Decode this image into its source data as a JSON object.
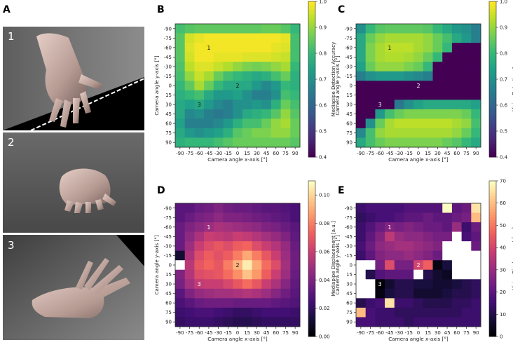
{
  "figure": {
    "panel_letters": [
      "A",
      "B",
      "C",
      "D",
      "E"
    ],
    "photo_labels": [
      "1",
      "2",
      "3"
    ]
  },
  "chart_data": [
    {
      "id": "B",
      "type": "heatmap",
      "xlabel": "Camera angle x-axis [°]",
      "ylabel": "Camera angle y-axis [°]",
      "x_ticks": [
        "-90",
        "-75",
        "-60",
        "-45",
        "-30",
        "-15",
        "0",
        "15",
        "30",
        "45",
        "60",
        "75",
        "90"
      ],
      "y_ticks": [
        "-90",
        "-75",
        "-60",
        "-45",
        "-30",
        "-15",
        "0",
        "15",
        "30",
        "45",
        "60",
        "75",
        "90"
      ],
      "colorbar": {
        "label": "Mediapipe Detection Accuracy",
        "range": [
          0.4,
          1.0
        ],
        "ticks": [
          "0.4",
          "0.5",
          "0.6",
          "0.7",
          "0.8",
          "0.9",
          "1.0"
        ],
        "colormap": "viridis"
      },
      "annotations": [
        {
          "text": "1",
          "x": -45,
          "y": -60
        },
        {
          "text": "2",
          "x": 0,
          "y": 0
        },
        {
          "text": "3",
          "x": -60,
          "y": 30
        }
      ],
      "values": [
        [
          0.82,
          0.84,
          0.85,
          0.85,
          0.85,
          0.85,
          0.85,
          0.85,
          0.85,
          0.86,
          0.86,
          0.84,
          0.8
        ],
        [
          0.84,
          0.96,
          0.98,
          0.99,
          0.99,
          0.99,
          0.99,
          0.99,
          0.99,
          0.99,
          0.99,
          0.98,
          0.82
        ],
        [
          0.84,
          0.97,
          0.99,
          0.99,
          0.99,
          0.99,
          0.99,
          0.99,
          0.99,
          0.99,
          0.98,
          0.97,
          0.82
        ],
        [
          0.84,
          0.96,
          0.99,
          0.99,
          0.98,
          0.98,
          0.98,
          0.97,
          0.97,
          0.97,
          0.96,
          0.95,
          0.82
        ],
        [
          0.83,
          0.94,
          0.97,
          0.97,
          0.95,
          0.93,
          0.9,
          0.88,
          0.87,
          0.88,
          0.9,
          0.92,
          0.8
        ],
        [
          0.82,
          0.9,
          0.95,
          0.92,
          0.86,
          0.82,
          0.8,
          0.78,
          0.76,
          0.78,
          0.82,
          0.86,
          0.78
        ],
        [
          0.8,
          0.85,
          0.92,
          0.86,
          0.8,
          0.76,
          0.76,
          0.76,
          0.72,
          0.68,
          0.72,
          0.8,
          0.78
        ],
        [
          0.78,
          0.8,
          0.82,
          0.76,
          0.72,
          0.72,
          0.74,
          0.7,
          0.66,
          0.66,
          0.7,
          0.82,
          0.8
        ],
        [
          0.76,
          0.74,
          0.76,
          0.72,
          0.68,
          0.66,
          0.7,
          0.7,
          0.72,
          0.7,
          0.78,
          0.86,
          0.82
        ],
        [
          0.76,
          0.68,
          0.7,
          0.66,
          0.64,
          0.66,
          0.7,
          0.76,
          0.78,
          0.8,
          0.84,
          0.9,
          0.84
        ],
        [
          0.74,
          0.66,
          0.66,
          0.66,
          0.68,
          0.72,
          0.78,
          0.82,
          0.82,
          0.86,
          0.9,
          0.92,
          0.86
        ],
        [
          0.76,
          0.72,
          0.7,
          0.72,
          0.74,
          0.78,
          0.84,
          0.86,
          0.88,
          0.88,
          0.9,
          0.9,
          0.86
        ],
        [
          0.78,
          0.8,
          0.8,
          0.8,
          0.82,
          0.84,
          0.86,
          0.86,
          0.86,
          0.86,
          0.86,
          0.86,
          0.84
        ]
      ]
    },
    {
      "id": "C",
      "type": "heatmap",
      "xlabel": "Camera angle x-axis [°]",
      "ylabel": "Camera angle y-axis [°]",
      "x_ticks": [
        "-90",
        "-75",
        "-60",
        "-45",
        "-30",
        "-15",
        "0",
        "15",
        "30",
        "45",
        "60",
        "75",
        "90"
      ],
      "y_ticks": [
        "-90",
        "-75",
        "-60",
        "-45",
        "-30",
        "-15",
        "0",
        "15",
        "30",
        "45",
        "60",
        "75",
        "90"
      ],
      "colorbar": {
        "label": "Vision Detection Accuracy",
        "range": [
          0.4,
          1.0
        ],
        "ticks": [
          "0.4",
          "0.5",
          "0.6",
          "0.7",
          "0.8",
          "0.9",
          "1.0"
        ],
        "colormap": "viridis"
      },
      "annotations": [
        {
          "text": "1",
          "x": -45,
          "y": -60
        },
        {
          "text": "2",
          "x": 0,
          "y": 0
        },
        {
          "text": "3",
          "x": -60,
          "y": 30
        }
      ],
      "values": [
        [
          0.7,
          0.8,
          0.84,
          0.85,
          0.85,
          0.85,
          0.85,
          0.84,
          0.8,
          0.76,
          0.72,
          0.7,
          0.66
        ],
        [
          0.76,
          0.86,
          0.9,
          0.92,
          0.92,
          0.92,
          0.92,
          0.9,
          0.86,
          0.82,
          0.76,
          0.72,
          0.66
        ],
        [
          0.76,
          0.88,
          0.92,
          0.94,
          0.94,
          0.94,
          0.92,
          0.9,
          0.86,
          0.8,
          0.4,
          0.4,
          0.4
        ],
        [
          0.76,
          0.88,
          0.92,
          0.93,
          0.93,
          0.92,
          0.9,
          0.86,
          0.8,
          0.4,
          0.4,
          0.4,
          0.4
        ],
        [
          0.74,
          0.86,
          0.9,
          0.9,
          0.9,
          0.88,
          0.86,
          0.8,
          0.4,
          0.4,
          0.4,
          0.4,
          0.4
        ],
        [
          0.66,
          0.7,
          0.72,
          0.72,
          0.72,
          0.7,
          0.68,
          0.66,
          0.4,
          0.4,
          0.4,
          0.4,
          0.4
        ],
        [
          0.4,
          0.4,
          0.4,
          0.4,
          0.4,
          0.4,
          0.4,
          0.4,
          0.4,
          0.4,
          0.4,
          0.4,
          0.4
        ],
        [
          0.4,
          0.4,
          0.4,
          0.4,
          0.4,
          0.4,
          0.4,
          0.4,
          0.4,
          0.4,
          0.4,
          0.4,
          0.4
        ],
        [
          0.4,
          0.4,
          0.4,
          0.4,
          0.64,
          0.7,
          0.74,
          0.76,
          0.76,
          0.76,
          0.76,
          0.76,
          0.74
        ],
        [
          0.4,
          0.4,
          0.72,
          0.82,
          0.86,
          0.88,
          0.88,
          0.88,
          0.88,
          0.88,
          0.88,
          0.86,
          0.8
        ],
        [
          0.4,
          0.7,
          0.86,
          0.92,
          0.94,
          0.94,
          0.94,
          0.94,
          0.94,
          0.94,
          0.92,
          0.9,
          0.82
        ],
        [
          0.68,
          0.82,
          0.9,
          0.92,
          0.92,
          0.92,
          0.92,
          0.92,
          0.92,
          0.92,
          0.9,
          0.86,
          0.8
        ],
        [
          0.76,
          0.82,
          0.86,
          0.88,
          0.88,
          0.88,
          0.88,
          0.88,
          0.88,
          0.86,
          0.84,
          0.8,
          0.76
        ]
      ]
    },
    {
      "id": "D",
      "type": "heatmap",
      "xlabel": "Camera angle x-axis [°]",
      "ylabel": "Camera angle y-axis [°]",
      "x_ticks": [
        "-90",
        "-75",
        "-60",
        "-45",
        "-30",
        "-15",
        "0",
        "15",
        "30",
        "45",
        "60",
        "75",
        "90"
      ],
      "y_ticks": [
        "-90",
        "-75",
        "-60",
        "-45",
        "-30",
        "-15",
        "0",
        "15",
        "30",
        "45",
        "60",
        "75",
        "90"
      ],
      "colorbar": {
        "label": "Mediapipe Displacement [a.u.]",
        "range": [
          0.0,
          0.11
        ],
        "ticks": [
          "0.00",
          "0.02",
          "0.04",
          "0.06",
          "0.08",
          "0.10"
        ],
        "colormap": "magma"
      },
      "annotations": [
        {
          "text": "1",
          "x": -45,
          "y": -60
        },
        {
          "text": "2",
          "x": 0,
          "y": 0
        },
        {
          "text": "3",
          "x": -60,
          "y": 30
        }
      ],
      "missing_color": "#ffffff",
      "values": [
        [
          0.03,
          0.03,
          0.034,
          0.036,
          0.04,
          0.036,
          0.034,
          0.034,
          0.032,
          0.03,
          0.03,
          0.028,
          0.026
        ],
        [
          0.03,
          0.034,
          0.038,
          0.04,
          0.044,
          0.04,
          0.04,
          0.038,
          0.036,
          0.034,
          0.032,
          0.03,
          0.026
        ],
        [
          0.034,
          0.04,
          0.044,
          0.048,
          0.052,
          0.05,
          0.048,
          0.046,
          0.044,
          0.04,
          0.038,
          0.034,
          0.03
        ],
        [
          0.034,
          0.044,
          0.052,
          0.06,
          0.058,
          0.056,
          0.06,
          0.058,
          0.054,
          0.05,
          0.046,
          0.04,
          0.032
        ],
        [
          0.034,
          0.048,
          0.06,
          0.066,
          0.07,
          0.066,
          0.072,
          0.074,
          0.066,
          0.06,
          0.054,
          0.046,
          0.034
        ],
        [
          0.01,
          0.052,
          0.066,
          0.072,
          0.068,
          0.072,
          0.08,
          0.09,
          0.08,
          0.07,
          0.06,
          0.048,
          0.036
        ],
        [
          null,
          0.056,
          0.07,
          0.074,
          0.07,
          0.08,
          0.092,
          0.106,
          0.09,
          0.076,
          0.066,
          0.05,
          0.036
        ],
        [
          0.04,
          0.054,
          0.066,
          0.068,
          0.07,
          0.076,
          0.084,
          0.096,
          0.086,
          0.072,
          0.06,
          0.048,
          0.034
        ],
        [
          0.038,
          0.05,
          0.058,
          0.06,
          0.06,
          0.064,
          0.07,
          0.076,
          0.07,
          0.06,
          0.052,
          0.042,
          0.032
        ],
        [
          0.03,
          0.04,
          0.046,
          0.048,
          0.05,
          0.05,
          0.052,
          0.054,
          0.052,
          0.048,
          0.042,
          0.036,
          0.03
        ],
        [
          0.026,
          0.03,
          0.034,
          0.036,
          0.036,
          0.036,
          0.034,
          0.034,
          0.034,
          0.034,
          0.032,
          0.03,
          0.028
        ],
        [
          0.022,
          0.024,
          0.026,
          0.026,
          0.024,
          0.022,
          0.02,
          0.02,
          0.022,
          0.024,
          0.024,
          0.024,
          0.022
        ],
        [
          0.02,
          0.022,
          0.022,
          0.022,
          0.02,
          0.018,
          0.016,
          0.016,
          0.018,
          0.02,
          0.02,
          0.02,
          0.02
        ]
      ]
    },
    {
      "id": "E",
      "type": "heatmap",
      "xlabel": "Camera angle x-axis [°]",
      "ylabel": "Camera angle y-axis [°]",
      "x_ticks": [
        "-90",
        "-75",
        "-60",
        "-45",
        "-30",
        "-15",
        "0",
        "15",
        "30",
        "45",
        "60",
        "75",
        "90"
      ],
      "y_ticks": [
        "-90",
        "-75",
        "-60",
        "-45",
        "-30",
        "-15",
        "0",
        "15",
        "30",
        "45",
        "60",
        "75",
        "90"
      ],
      "colorbar": {
        "label": "Vision Displacement [px.]",
        "range": [
          0,
          70
        ],
        "ticks": [
          "0",
          "10",
          "20",
          "30",
          "40",
          "50",
          "60",
          "70"
        ],
        "colormap": "magma"
      },
      "annotations": [
        {
          "text": "1",
          "x": -45,
          "y": -60
        },
        {
          "text": "2",
          "x": 0,
          "y": 0
        },
        {
          "text": "3",
          "x": -60,
          "y": 30
        }
      ],
      "missing_color": "#ffffff",
      "values": [
        [
          14,
          16,
          16,
          16,
          16,
          18,
          18,
          18,
          18,
          70,
          20,
          22,
          66
        ],
        [
          12,
          14,
          16,
          16,
          18,
          20,
          20,
          22,
          20,
          20,
          22,
          24,
          60
        ],
        [
          14,
          18,
          22,
          26,
          24,
          26,
          24,
          22,
          22,
          20,
          30,
          14,
          22
        ],
        [
          14,
          20,
          26,
          36,
          30,
          28,
          28,
          26,
          24,
          24,
          null,
          16,
          20
        ],
        [
          16,
          22,
          28,
          30,
          32,
          32,
          30,
          28,
          26,
          null,
          null,
          null,
          22
        ],
        [
          14,
          20,
          26,
          28,
          28,
          30,
          28,
          26,
          22,
          null,
          null,
          null,
          null
        ],
        [
          null,
          null,
          24,
          42,
          24,
          24,
          40,
          46,
          2,
          8,
          null,
          null,
          null
        ],
        [
          null,
          10,
          18,
          20,
          20,
          20,
          null,
          10,
          6,
          4,
          null,
          null,
          null
        ],
        [
          null,
          null,
          0,
          6,
          10,
          10,
          8,
          8,
          6,
          6,
          8,
          10,
          12
        ],
        [
          null,
          null,
          2,
          8,
          10,
          10,
          6,
          6,
          6,
          8,
          10,
          10,
          12
        ],
        [
          10,
          14,
          16,
          66,
          14,
          14,
          12,
          10,
          10,
          10,
          12,
          12,
          14
        ],
        [
          60,
          16,
          14,
          14,
          12,
          12,
          12,
          12,
          12,
          12,
          12,
          14,
          14
        ],
        [
          16,
          16,
          14,
          14,
          14,
          12,
          14,
          14,
          14,
          14,
          14,
          14,
          14
        ]
      ]
    }
  ]
}
